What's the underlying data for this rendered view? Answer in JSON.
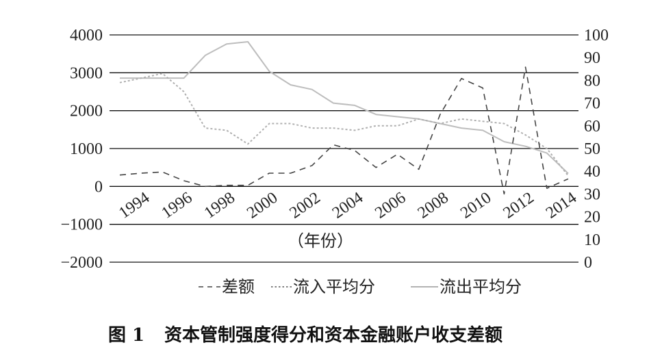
{
  "chart_data": {
    "type": "line",
    "title": "",
    "xlabel": "（年份）",
    "left_axis": {
      "ticks": [
        4000,
        3000,
        2000,
        1000,
        0,
        -1000,
        -2000
      ],
      "tick_labels": [
        "4000",
        "3000",
        "2000",
        "1000",
        "0",
        "−1000",
        "−2000"
      ],
      "ylim": [
        -2000,
        4000
      ]
    },
    "right_axis": {
      "ticks": [
        100,
        90,
        80,
        70,
        60,
        50,
        40,
        30,
        20,
        10,
        0
      ],
      "tick_labels": [
        "100",
        "90",
        "80",
        "70",
        "60",
        "50",
        "40",
        "30",
        "20",
        "10",
        "0"
      ],
      "ylim": [
        0,
        100
      ]
    },
    "x_tick_labels": [
      "1994",
      "1996",
      "1998",
      "2000",
      "2002",
      "2004",
      "2006",
      "2008",
      "2010",
      "2012",
      "2014"
    ],
    "grid": "horizontal",
    "x": [
      1993,
      1994,
      1995,
      1996,
      1997,
      1998,
      1999,
      2000,
      2001,
      2002,
      2003,
      2004,
      2005,
      2006,
      2007,
      2008,
      2009,
      2010,
      2011,
      2012,
      2013,
      2014
    ],
    "series": [
      {
        "name": "差额",
        "axis": "left",
        "style": "dashed",
        "color": "#444444",
        "values": [
          300,
          350,
          380,
          150,
          0,
          30,
          30,
          350,
          350,
          550,
          1100,
          950,
          500,
          850,
          450,
          1900,
          2850,
          2600,
          -200,
          3150,
          -50,
          200
        ]
      },
      {
        "name": "流入平均分",
        "axis": "right",
        "style": "dotted",
        "color": "#b0b0b0",
        "values": [
          79,
          81,
          83,
          75,
          59,
          58,
          52,
          61,
          61,
          59,
          59,
          58,
          60,
          60,
          63,
          61,
          63,
          62,
          61,
          56,
          50,
          38
        ]
      },
      {
        "name": "流出平均分",
        "axis": "right",
        "style": "solid",
        "color": "#bdbdbd",
        "values": [
          81,
          81,
          81,
          81,
          91,
          96,
          97,
          84,
          78,
          76,
          70,
          69,
          65,
          64,
          63,
          61,
          59,
          58,
          53,
          51,
          48,
          39
        ]
      }
    ]
  },
  "legend": {
    "items": [
      {
        "label": "差额",
        "style": "dashed"
      },
      {
        "label": "流入平均分",
        "style": "dotted"
      },
      {
        "label": "流出平均分",
        "style": "solid"
      }
    ]
  },
  "caption": {
    "number": "图 1",
    "text": "资本管制强度得分和资本金融账户收支差额"
  }
}
